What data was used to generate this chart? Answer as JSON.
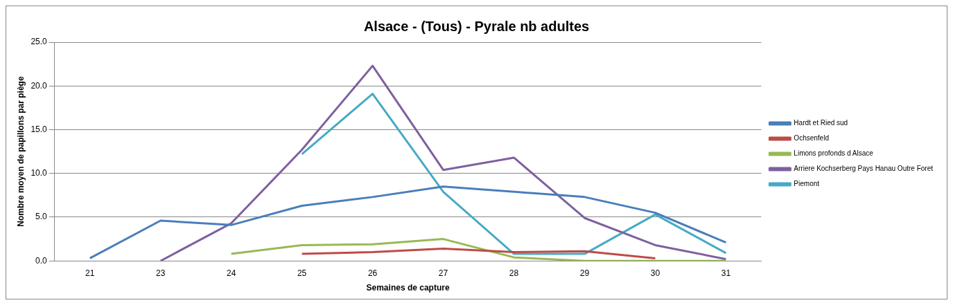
{
  "chart_data": {
    "type": "line",
    "title": "Alsace - (Tous) - Pyrale nb adultes",
    "xlabel": "Semaines de capture",
    "ylabel": "Nombre moyen de papillons par piège",
    "categories": [
      "21",
      "23",
      "24",
      "25",
      "26",
      "27",
      "28",
      "29",
      "30",
      "31"
    ],
    "series": [
      {
        "name": "Hardt et Ried sud",
        "color": "#4a7ebb",
        "values": [
          0.3,
          4.6,
          4.1,
          6.3,
          7.3,
          8.5,
          7.9,
          7.3,
          5.5,
          2.1
        ]
      },
      {
        "name": "Ochsenfeld",
        "color": "#be4b48",
        "values": [
          null,
          null,
          null,
          0.8,
          1.0,
          1.4,
          1.0,
          1.1,
          0.3,
          null
        ]
      },
      {
        "name": "Limons profonds d Alsace",
        "color": "#98b954",
        "values": [
          null,
          null,
          0.8,
          1.8,
          1.9,
          2.5,
          0.4,
          0.0,
          0.0,
          0.0
        ]
      },
      {
        "name": "Arriere Kochserberg Pays Hanau Outre Foret",
        "color": "#7d60a0",
        "values": [
          null,
          0.0,
          4.3,
          12.7,
          22.3,
          10.4,
          11.8,
          4.9,
          1.8,
          0.2
        ]
      },
      {
        "name": "Piemont",
        "color": "#46aac5",
        "values": [
          null,
          null,
          null,
          12.2,
          19.1,
          7.9,
          0.8,
          0.8,
          5.3,
          0.9
        ]
      }
    ],
    "ylim": [
      0,
      25
    ],
    "yticks": [
      {
        "value": 0,
        "label": "0.0"
      },
      {
        "value": 5,
        "label": "5.0"
      },
      {
        "value": 10,
        "label": "10.0"
      },
      {
        "value": 15,
        "label": "15.0"
      },
      {
        "value": 20,
        "label": "20.0"
      },
      {
        "value": 25,
        "label": "25.0"
      }
    ],
    "grid": "y",
    "legend": "right",
    "marker": "none",
    "line_style": "solid"
  }
}
